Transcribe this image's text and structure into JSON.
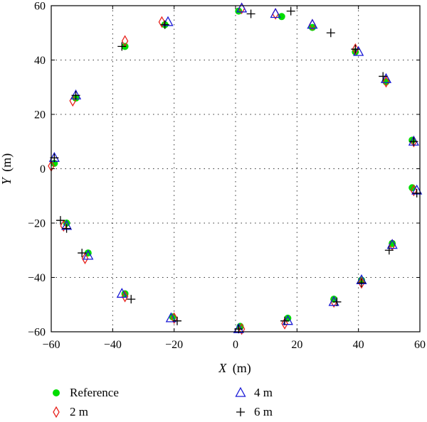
{
  "chart_data": {
    "type": "scatter",
    "xlabel_var": "X",
    "xlabel_unit": "(m)",
    "ylabel_var": "Y",
    "ylabel_unit": "(m)",
    "xlim": [
      -60,
      60
    ],
    "ylim": [
      -60,
      60
    ],
    "xticks": [
      -60,
      -40,
      -20,
      0,
      20,
      40,
      60
    ],
    "yticks": [
      -60,
      -40,
      -20,
      0,
      20,
      40,
      60
    ],
    "grid": true,
    "legend_position": "bottom",
    "series": [
      {
        "name": "Reference",
        "marker": "filled-circle",
        "color": "#00dd00",
        "points": [
          [
            -59,
            2
          ],
          [
            -52,
            26
          ],
          [
            -36,
            45
          ],
          [
            -23,
            53
          ],
          [
            1,
            58
          ],
          [
            15,
            56
          ],
          [
            25,
            52
          ],
          [
            39,
            43
          ],
          [
            49,
            32
          ],
          [
            57.5,
            10.5
          ],
          [
            57.5,
            -7
          ],
          [
            51,
            -27.5
          ],
          [
            41,
            -41
          ],
          [
            32,
            -48
          ],
          [
            17,
            -55
          ],
          [
            1.5,
            -58
          ],
          [
            -20.5,
            -54.5
          ],
          [
            -36,
            -46
          ],
          [
            -48,
            -31
          ],
          [
            -55,
            -20
          ]
        ]
      },
      {
        "name": "2 m",
        "marker": "diamond",
        "color": "#e8231d",
        "points": [
          [
            -60,
            1
          ],
          [
            -53,
            25
          ],
          [
            -36,
            47
          ],
          [
            -24,
            54
          ],
          [
            2,
            59
          ],
          [
            13,
            57
          ],
          [
            25,
            53
          ],
          [
            39,
            44
          ],
          [
            49,
            32
          ],
          [
            58,
            10
          ],
          [
            58,
            -8
          ],
          [
            51,
            -28
          ],
          [
            41,
            -42
          ],
          [
            32,
            -49
          ],
          [
            16,
            -57
          ],
          [
            2,
            -59
          ],
          [
            -20,
            -55
          ],
          [
            -36,
            -47
          ],
          [
            -49,
            -33
          ],
          [
            -56,
            -21
          ]
        ]
      },
      {
        "name": "4 m",
        "marker": "triangle",
        "color": "#1a1ad6",
        "points": [
          [
            -59,
            4
          ],
          [
            -52,
            27
          ],
          [
            -22,
            54
          ],
          [
            2,
            59
          ],
          [
            13,
            57
          ],
          [
            25,
            53
          ],
          [
            40,
            43
          ],
          [
            49,
            33
          ],
          [
            58,
            10
          ],
          [
            59,
            -8
          ],
          [
            51,
            -28
          ],
          [
            41,
            -41
          ],
          [
            32,
            -49
          ],
          [
            17,
            -56
          ],
          [
            1,
            -59
          ],
          [
            -21,
            -55
          ],
          [
            -37,
            -46
          ],
          [
            -48,
            -32
          ],
          [
            -55,
            -21
          ]
        ]
      },
      {
        "name": "6 m",
        "marker": "plus",
        "color": "#000000",
        "points": [
          [
            -59,
            4
          ],
          [
            -52,
            27
          ],
          [
            -37,
            45
          ],
          [
            -23,
            53
          ],
          [
            5,
            57
          ],
          [
            18,
            58
          ],
          [
            31,
            50
          ],
          [
            39,
            44
          ],
          [
            48,
            34
          ],
          [
            58,
            10
          ],
          [
            59,
            -9
          ],
          [
            50,
            -30
          ],
          [
            41,
            -42
          ],
          [
            33,
            -49
          ],
          [
            16,
            -56
          ],
          [
            1,
            -59
          ],
          [
            -19,
            -56
          ],
          [
            -34,
            -48
          ],
          [
            -50,
            -31
          ],
          [
            -55,
            -22
          ],
          [
            -57,
            -19
          ]
        ]
      }
    ]
  }
}
